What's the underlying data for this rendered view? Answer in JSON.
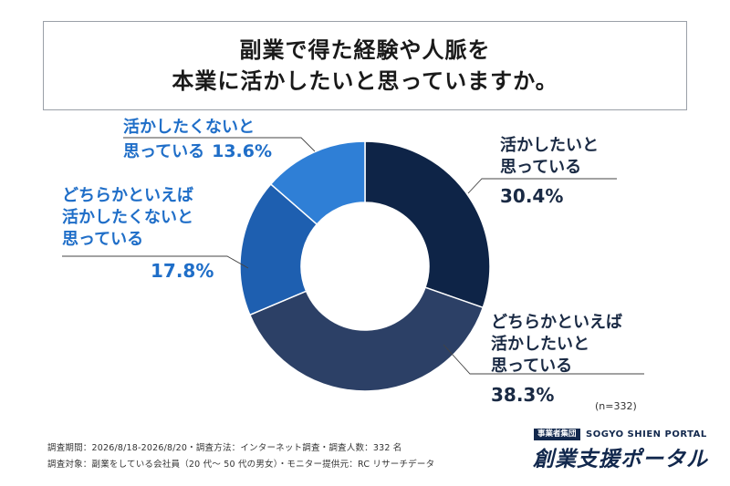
{
  "title": {
    "line1": "副業で得た経験や人脈を",
    "line2": "本業に活かしたいと思っていますか。"
  },
  "chart_data": {
    "type": "pie",
    "donut": true,
    "slices": [
      {
        "label_lines": [
          "活かしたいと",
          "思っている"
        ],
        "value": 30.4,
        "value_text": "30.4%",
        "color": "#0e2447"
      },
      {
        "label_lines": [
          "どちらかといえば",
          "活かしたいと",
          "思っている"
        ],
        "value": 38.3,
        "value_text": "38.3%",
        "color": "#2c4066"
      },
      {
        "label_lines": [
          "どちらかといえば",
          "活かしたくないと",
          "思っている"
        ],
        "value": 17.8,
        "value_text": "17.8%",
        "color": "#1e5fb0"
      },
      {
        "label_lines": [
          "活かしたくないと",
          "思っている"
        ],
        "value": 13.6,
        "value_text": "13.6%",
        "color": "#2f7fd6"
      }
    ],
    "label_colors": {
      "dark": "#1a2a44",
      "blue": "#1f6ec8"
    }
  },
  "n_label": "(n=332)",
  "footer": {
    "line1": "調査期間：2026/8/18-2026/8/20・調査方法：インターネット調査・調査人数：332 名",
    "line2": "調査対象：副業をしている会社員（20 代〜 50 代の男女）・モニター提供元：RC リサーチデータ"
  },
  "logo": {
    "tag": "事業者集団",
    "en": "SOGYO SHIEN PORTAL",
    "jp": "創業支援ポータル"
  }
}
